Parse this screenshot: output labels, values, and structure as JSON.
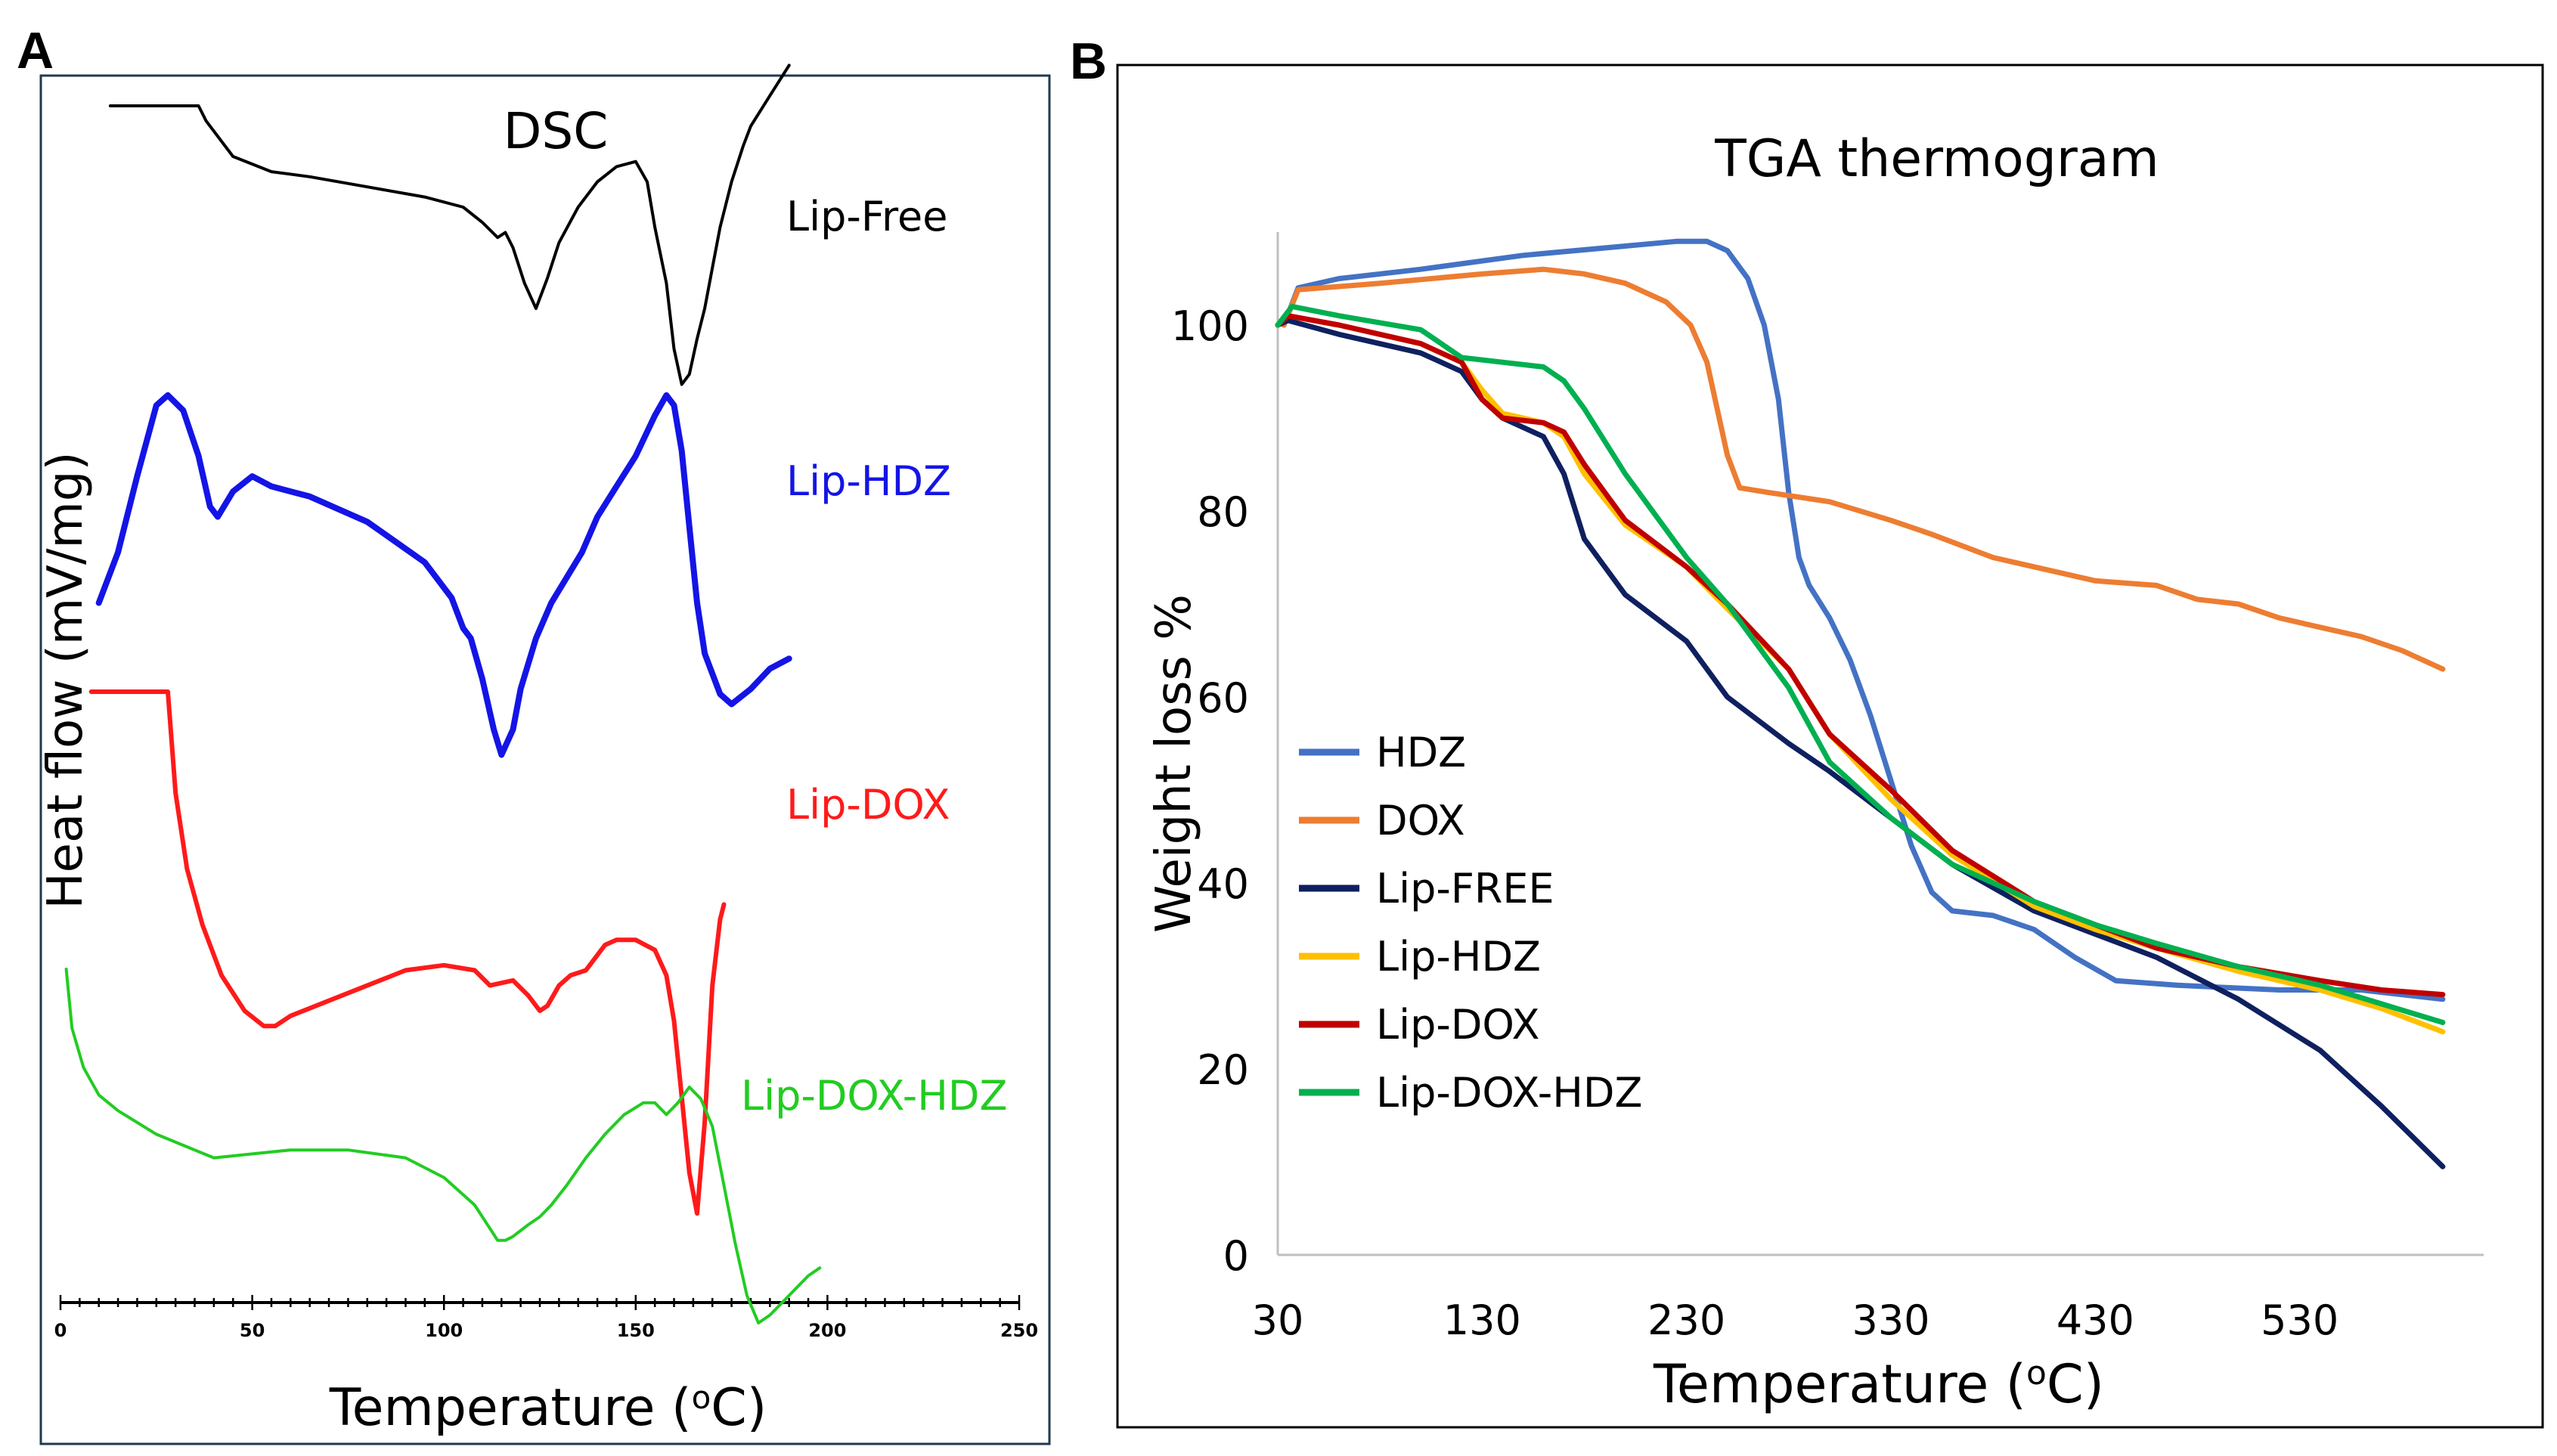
{
  "panels": {
    "a_label": "A",
    "b_label": "B"
  },
  "chart_data": [
    {
      "type": "line",
      "title": "DSC",
      "xlabel": "Temperature (oC)",
      "ylabel": "Heat flow (mV/mg)",
      "xlim": [
        0,
        250
      ],
      "x_ticks": [
        0,
        50,
        100,
        150,
        200,
        250
      ],
      "series": [
        {
          "name": "Lip-Free",
          "color": "#000000",
          "x": [
            13,
            36,
            38,
            45,
            55,
            65,
            80,
            95,
            105,
            110,
            114,
            116,
            118,
            121,
            124,
            127,
            130,
            135,
            140,
            145,
            150,
            153,
            155,
            158,
            160,
            162,
            164,
            166,
            168,
            170,
            172,
            175,
            178,
            180,
            185,
            190
          ],
          "y": [
            0,
            0,
            -0.3,
            -1.0,
            -1.3,
            -1.4,
            -1.6,
            -1.8,
            -2.0,
            -2.3,
            -2.6,
            -2.5,
            -2.8,
            -3.5,
            -4.0,
            -3.4,
            -2.7,
            -2.0,
            -1.5,
            -1.2,
            -1.1,
            -1.5,
            -2.4,
            -3.5,
            -4.8,
            -5.5,
            -5.3,
            -4.6,
            -4.0,
            -3.2,
            -2.4,
            -1.5,
            -0.8,
            -0.4,
            0.2,
            0.8
          ]
        },
        {
          "name": "Lip-HDZ",
          "color": "#1414e6",
          "x": [
            10,
            15,
            20,
            25,
            28,
            32,
            36,
            39,
            41,
            45,
            50,
            55,
            65,
            80,
            95,
            102,
            105,
            107,
            110,
            113,
            115,
            118,
            120,
            124,
            128,
            132,
            136,
            140,
            145,
            150,
            155,
            158,
            160,
            162,
            164,
            166,
            168,
            172,
            175,
            180,
            185,
            190
          ],
          "y": [
            -2.5,
            -1.5,
            0,
            1.4,
            1.6,
            1.3,
            0.4,
            -0.6,
            -0.8,
            -0.3,
            0,
            -0.2,
            -0.4,
            -0.9,
            -1.7,
            -2.4,
            -3.0,
            -3.2,
            -4.0,
            -5.0,
            -5.5,
            -5.0,
            -4.2,
            -3.2,
            -2.5,
            -2.0,
            -1.5,
            -0.8,
            -0.2,
            0.4,
            1.2,
            1.6,
            1.4,
            0.5,
            -1.0,
            -2.5,
            -3.5,
            -4.3,
            -4.5,
            -4.2,
            -3.8,
            -3.6
          ]
        },
        {
          "name": "Lip-DOX",
          "color": "#ff1a1a",
          "x": [
            8,
            10,
            20,
            28,
            30,
            33,
            37,
            42,
            48,
            53,
            56,
            60,
            70,
            80,
            90,
            100,
            108,
            112,
            118,
            122,
            125,
            127,
            130,
            133,
            137,
            142,
            145,
            150,
            155,
            158,
            160,
            162,
            164,
            166,
            168,
            170,
            172,
            173
          ],
          "y": [
            0,
            0,
            0,
            0,
            -2.0,
            -3.5,
            -4.6,
            -5.6,
            -6.3,
            -6.6,
            -6.6,
            -6.4,
            -6.1,
            -5.8,
            -5.5,
            -5.4,
            -5.5,
            -5.8,
            -5.7,
            -6.0,
            -6.3,
            -6.2,
            -5.8,
            -5.6,
            -5.5,
            -5.0,
            -4.9,
            -4.9,
            -5.1,
            -5.6,
            -6.5,
            -8.0,
            -9.5,
            -10.3,
            -8.5,
            -5.8,
            -4.5,
            -4.2
          ]
        },
        {
          "name": "Lip-DOX-HDZ",
          "color": "#22cc22",
          "x": [
            1.5,
            3,
            6,
            10,
            15,
            25,
            35,
            40,
            50,
            60,
            75,
            90,
            100,
            108,
            112,
            114,
            116,
            118,
            122,
            125,
            128,
            132,
            137,
            142,
            147,
            152,
            155,
            158,
            161,
            164,
            167,
            170,
            173,
            176,
            179,
            182,
            185,
            190,
            195,
            198
          ],
          "y": [
            4.0,
            2.5,
            1.5,
            0.8,
            0.4,
            -0.2,
            -0.6,
            -0.8,
            -0.7,
            -0.6,
            -0.6,
            -0.8,
            -1.3,
            -2.0,
            -2.6,
            -2.9,
            -2.9,
            -2.8,
            -2.5,
            -2.3,
            -2.0,
            -1.5,
            -0.8,
            -0.2,
            0.3,
            0.6,
            0.6,
            0.3,
            0.6,
            1.0,
            0.7,
            0.0,
            -1.5,
            -3.0,
            -4.3,
            -5.0,
            -4.8,
            -4.3,
            -3.8,
            -3.6
          ]
        }
      ]
    },
    {
      "type": "line",
      "title": "TGA thermogram",
      "xlabel": "Temperature (oC)",
      "ylabel": "Weight  loss %",
      "xlim": [
        30,
        620
      ],
      "ylim": [
        0,
        110
      ],
      "x_ticks": [
        30,
        130,
        230,
        330,
        430,
        530
      ],
      "y_ticks": [
        0,
        20,
        40,
        60,
        80,
        100
      ],
      "legend": "left-middle",
      "series": [
        {
          "name": "HDZ",
          "color": "#4472C4",
          "x": [
            33,
            40,
            60,
            100,
            150,
            200,
            225,
            240,
            250,
            260,
            268,
            275,
            280,
            285,
            290,
            300,
            310,
            320,
            330,
            340,
            350,
            360,
            380,
            400,
            420,
            440,
            470,
            520,
            560,
            600
          ],
          "y": [
            100,
            104,
            105,
            106,
            107.5,
            108.5,
            109,
            109,
            108,
            105,
            100,
            92,
            82,
            75,
            72,
            68.5,
            64,
            58,
            51,
            44,
            39,
            37,
            36.5,
            35,
            32,
            29.5,
            29,
            28.5,
            28.5,
            27.5
          ]
        },
        {
          "name": "DOX",
          "color": "#ED7D31",
          "x": [
            33,
            40,
            80,
            130,
            160,
            180,
            200,
            220,
            232,
            240,
            245,
            250,
            256,
            270,
            300,
            330,
            350,
            380,
            400,
            430,
            460,
            480,
            500,
            520,
            540,
            560,
            580,
            600
          ],
          "y": [
            100,
            103.8,
            104.5,
            105.5,
            106,
            105.5,
            104.5,
            102.5,
            100,
            96,
            91,
            86,
            82.5,
            82,
            81,
            79,
            77.5,
            75,
            74,
            72.5,
            72,
            70.5,
            70,
            68.5,
            67.5,
            66.5,
            65,
            63
          ]
        },
        {
          "name": "Lip-FREE",
          "color": "#0F2060",
          "x": [
            30,
            35,
            60,
            100,
            120,
            130,
            140,
            160,
            170,
            180,
            200,
            230,
            250,
            280,
            300,
            330,
            360,
            400,
            430,
            460,
            500,
            540,
            570,
            600
          ],
          "y": [
            100,
            100.5,
            99,
            97,
            95,
            92,
            90,
            88,
            84,
            77,
            71,
            66,
            60,
            55,
            52,
            47,
            42,
            37,
            34.5,
            32,
            27.5,
            22,
            16,
            9.5
          ]
        },
        {
          "name": "Lip-HDZ",
          "color": "#FFC000",
          "x": [
            30,
            35,
            60,
            100,
            120,
            130,
            140,
            160,
            170,
            180,
            200,
            230,
            250,
            280,
            300,
            330,
            360,
            400,
            430,
            460,
            500,
            540,
            570,
            600
          ],
          "y": [
            100,
            101,
            100,
            98,
            96,
            93,
            90.5,
            89.5,
            88,
            84,
            78.5,
            74,
            69.5,
            63,
            56,
            49,
            43,
            37.5,
            35,
            33,
            30.5,
            28.5,
            26.5,
            24
          ]
        },
        {
          "name": "Lip-DOX",
          "color": "#C00000",
          "x": [
            30,
            35,
            60,
            100,
            120,
            130,
            140,
            160,
            170,
            180,
            200,
            230,
            250,
            280,
            300,
            330,
            360,
            400,
            430,
            460,
            500,
            540,
            570,
            600
          ],
          "y": [
            100,
            101,
            100,
            98,
            96,
            92,
            90,
            89.5,
            88.5,
            85,
            79,
            74,
            70,
            63,
            56,
            50,
            43.5,
            38,
            35.5,
            33,
            31,
            29.5,
            28.5,
            28
          ]
        },
        {
          "name": "Lip-DOX-HDZ",
          "color": "#00B050",
          "x": [
            30,
            37,
            60,
            100,
            110,
            120,
            140,
            160,
            170,
            180,
            200,
            230,
            250,
            280,
            300,
            330,
            360,
            400,
            430,
            460,
            500,
            540,
            570,
            600
          ],
          "y": [
            100,
            102,
            101,
            99.5,
            98,
            96.5,
            96,
            95.5,
            94,
            91,
            84,
            75,
            70,
            61,
            53,
            47,
            42,
            38,
            35.5,
            33.5,
            31,
            29,
            27,
            25
          ]
        }
      ]
    }
  ]
}
